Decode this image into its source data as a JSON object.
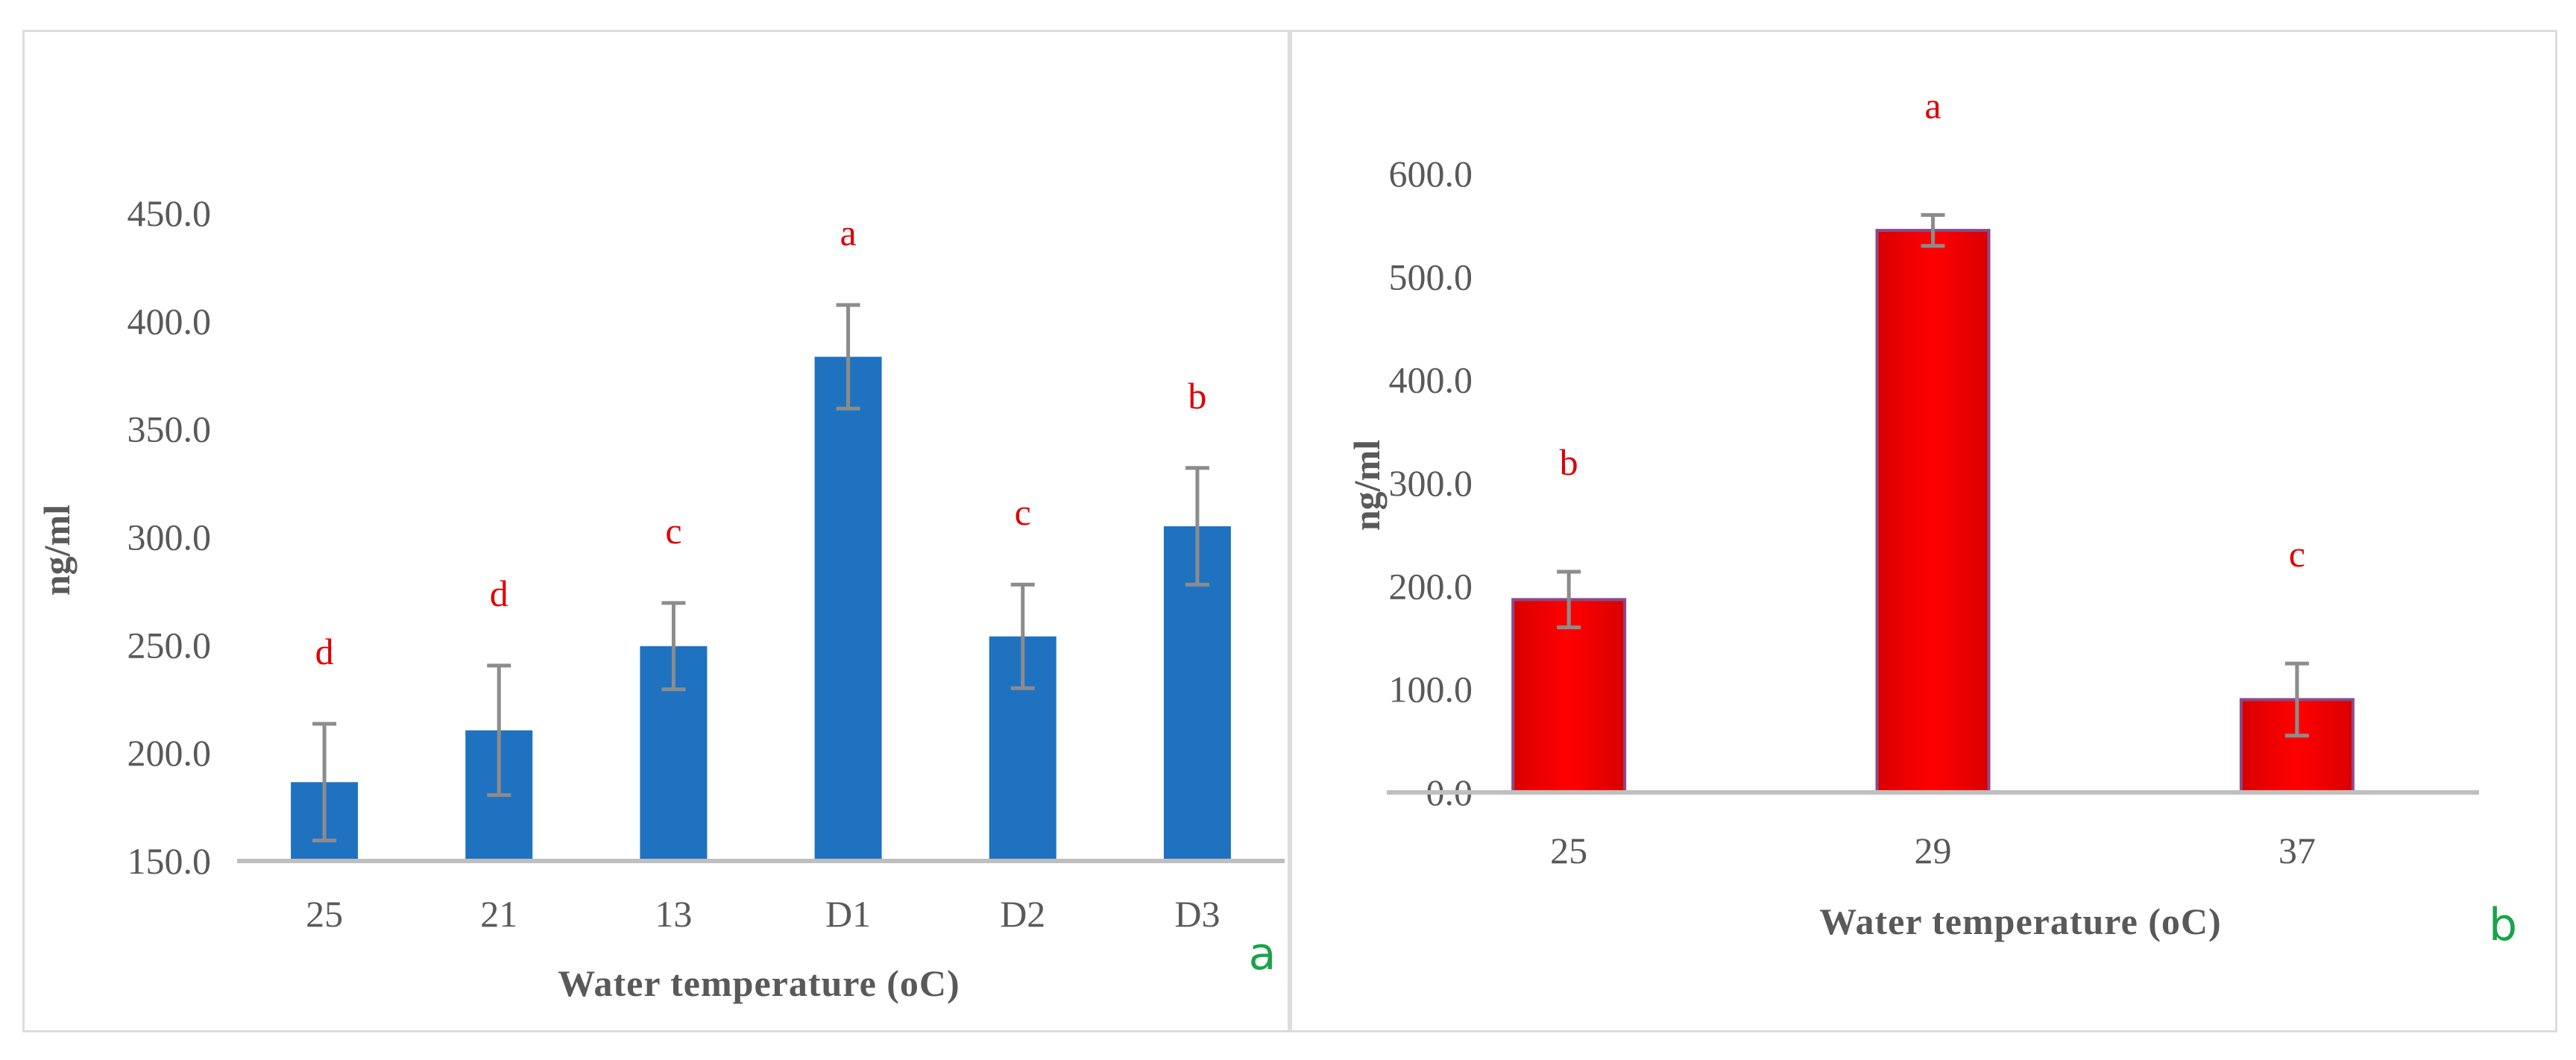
{
  "chart_data": [
    {
      "type": "bar",
      "panel_label": "a",
      "title": "",
      "xlabel": "Water temperature (oC)",
      "ylabel": "ng/ml",
      "categories": [
        "25",
        "21",
        "13",
        "D1",
        "D2",
        "D3"
      ],
      "values": [
        186.5,
        210.5,
        249.5,
        383.5,
        254.0,
        305.0
      ],
      "errors": [
        27,
        30,
        20,
        24,
        24,
        27
      ],
      "significance": [
        "d",
        "d",
        "c",
        "a",
        "c",
        "b"
      ],
      "ylim": [
        150,
        450
      ],
      "yticks": [
        "150.0",
        "200.0",
        "250.0",
        "300.0",
        "350.0",
        "400.0",
        "450.0"
      ],
      "bar_color": "#1f72c0",
      "grid": false
    },
    {
      "type": "bar",
      "panel_label": "b",
      "title": "",
      "xlabel": "Water temperature (oC)",
      "ylabel": "ng/ml",
      "categories": [
        "25",
        "29",
        "37"
      ],
      "values": [
        187,
        545,
        90
      ],
      "errors": [
        27,
        15,
        35
      ],
      "significance": [
        "b",
        "a",
        "c"
      ],
      "ylim": [
        0,
        600
      ],
      "yticks": [
        "0.0",
        "100.0",
        "200.0",
        "300.0",
        "400.0",
        "500.0",
        "600.0"
      ],
      "bar_color": "#ff0000",
      "grid": false
    }
  ]
}
